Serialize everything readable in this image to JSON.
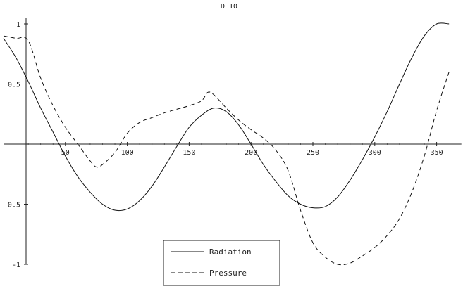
{
  "chart_data": {
    "type": "line",
    "title": "D 10",
    "xlim": [
      0,
      370
    ],
    "ylim": [
      -1,
      1.05
    ],
    "x_ticks": [
      50,
      100,
      150,
      200,
      250,
      300,
      350
    ],
    "y_ticks": [
      -1,
      -0.5,
      0.5,
      1
    ],
    "x_tick_labels": [
      "50",
      "100",
      "150",
      "200",
      "250",
      "300",
      "350"
    ],
    "y_tick_labels": [
      "-1",
      "-0.5",
      "0.5",
      "1"
    ],
    "grid": false,
    "legend_position": "bottom-center",
    "legend": {
      "radiation_label": "Radiation",
      "pressure_label": "Pressure"
    },
    "series": [
      {
        "name": "Radiation",
        "style": "solid",
        "color": "#111111",
        "x": [
          0,
          10,
          20,
          30,
          40,
          50,
          60,
          70,
          80,
          90,
          100,
          110,
          120,
          130,
          140,
          150,
          160,
          170,
          180,
          190,
          200,
          210,
          220,
          230,
          240,
          250,
          260,
          270,
          280,
          290,
          300,
          310,
          320,
          330,
          340,
          350,
          360
        ],
        "y": [
          0.88,
          0.72,
          0.52,
          0.3,
          0.1,
          -0.1,
          -0.27,
          -0.4,
          -0.5,
          -0.55,
          -0.54,
          -0.47,
          -0.35,
          -0.19,
          -0.02,
          0.14,
          0.24,
          0.3,
          0.27,
          0.16,
          0.0,
          -0.17,
          -0.31,
          -0.43,
          -0.5,
          -0.53,
          -0.52,
          -0.44,
          -0.3,
          -0.13,
          0.06,
          0.27,
          0.5,
          0.72,
          0.9,
          1.0,
          1.0
        ]
      },
      {
        "name": "Pressure",
        "style": "dashed",
        "color": "#111111",
        "x": [
          0,
          10,
          20,
          30,
          40,
          50,
          60,
          70,
          75,
          80,
          90,
          100,
          110,
          120,
          130,
          140,
          150,
          160,
          165,
          170,
          180,
          190,
          200,
          210,
          220,
          230,
          240,
          250,
          260,
          270,
          280,
          290,
          300,
          310,
          320,
          330,
          340,
          350,
          360
        ],
        "y": [
          0.9,
          0.88,
          0.86,
          0.55,
          0.32,
          0.14,
          0.0,
          -0.14,
          -0.19,
          -0.17,
          -0.07,
          0.09,
          0.18,
          0.22,
          0.26,
          0.29,
          0.32,
          0.36,
          0.43,
          0.41,
          0.3,
          0.2,
          0.12,
          0.05,
          -0.05,
          -0.22,
          -0.55,
          -0.82,
          -0.94,
          -1.0,
          -0.99,
          -0.93,
          -0.86,
          -0.76,
          -0.62,
          -0.4,
          -0.1,
          0.28,
          0.6
        ]
      }
    ]
  }
}
